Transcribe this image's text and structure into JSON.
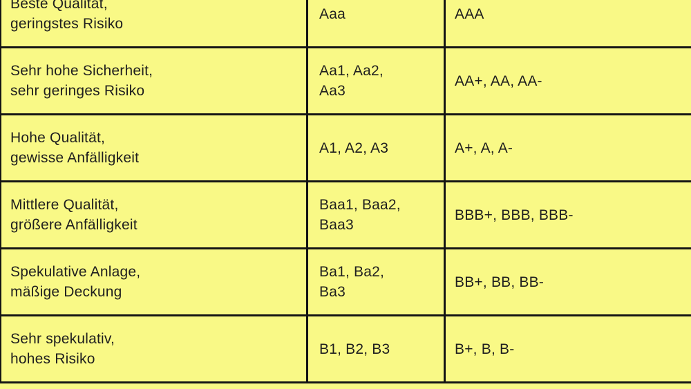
{
  "colors": {
    "background": "#f9f986",
    "border": "#141414",
    "text": "#1f1f1f"
  },
  "chart_data": {
    "type": "table",
    "grid": "on",
    "layout_hint": "three-column rating comparison table, top and bottom rows cropped by image edges, no right border visible",
    "rows": [
      {
        "description": "Beste Qualität,\ngeringstes Risiko",
        "moodys": "Aaa",
        "sp": "AAA"
      },
      {
        "description": "Sehr hohe Sicherheit,\nsehr geringes Risiko",
        "moodys": "Aa1, Aa2,\nAa3",
        "sp": "AA+, AA, AA-"
      },
      {
        "description": "Hohe Qualität,\ngewisse Anfälligkeit",
        "moodys": "A1, A2, A3",
        "sp": "A+, A, A-"
      },
      {
        "description": "Mittlere Qualität,\ngrößere Anfälligkeit",
        "moodys": "Baa1, Baa2,\nBaa3",
        "sp": "BBB+, BBB, BBB-"
      },
      {
        "description": "Spekulative Anlage,\nmäßige Deckung",
        "moodys": "Ba1, Ba2,\nBa3",
        "sp": "BB+, BB, BB-"
      },
      {
        "description": "Sehr spekulativ,\nhohes Risiko",
        "moodys": "B1, B2, B3",
        "sp": "B+, B, B-"
      }
    ]
  }
}
